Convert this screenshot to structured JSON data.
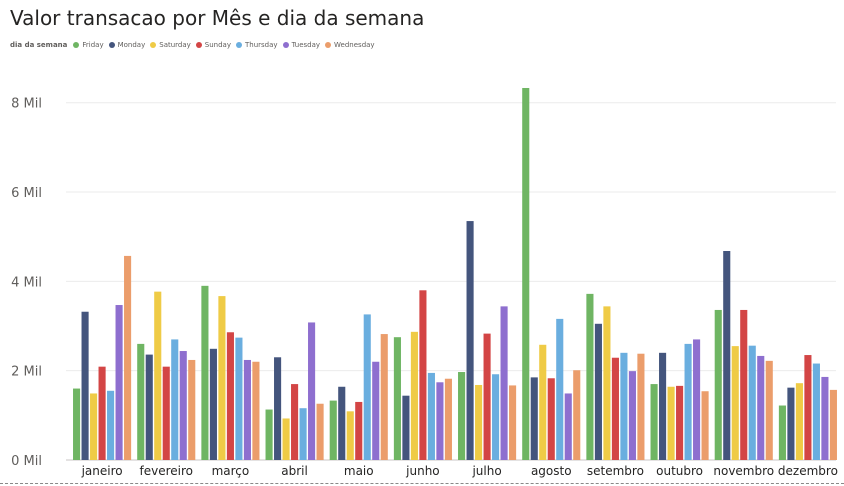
{
  "chart_data": {
    "type": "bar",
    "title": "Valor transacao por Mês e dia da semana",
    "legend_title": "dia da semana",
    "legend_position": "top-left",
    "grid": true,
    "ylim": [
      0,
      8800
    ],
    "yticks": [
      {
        "value": 0,
        "label": "0 Mil"
      },
      {
        "value": 2000,
        "label": "2 Mil"
      },
      {
        "value": 4000,
        "label": "4 Mil"
      },
      {
        "value": 6000,
        "label": "6 Mil"
      },
      {
        "value": 8000,
        "label": "8 Mil"
      }
    ],
    "categories": [
      "janeiro",
      "fevereiro",
      "março",
      "abril",
      "maio",
      "junho",
      "julho",
      "agosto",
      "setembro",
      "outubro",
      "novembro",
      "dezembro"
    ],
    "series": [
      {
        "name": "Friday",
        "color": "#6fb563",
        "values": [
          1600,
          2600,
          3900,
          1130,
          1330,
          2750,
          1970,
          8330,
          3720,
          1700,
          3360,
          1220
        ]
      },
      {
        "name": "Monday",
        "color": "#44557d",
        "values": [
          3320,
          2360,
          2490,
          2300,
          1640,
          1440,
          5350,
          1850,
          3050,
          2400,
          4680,
          1620
        ]
      },
      {
        "name": "Saturday",
        "color": "#efcb46",
        "values": [
          1490,
          3770,
          3670,
          930,
          1090,
          2870,
          1680,
          2580,
          3440,
          1640,
          2550,
          1720
        ]
      },
      {
        "name": "Sunday",
        "color": "#d34545",
        "values": [
          2090,
          2090,
          2860,
          1700,
          1300,
          3800,
          2830,
          1830,
          2290,
          1660,
          3360,
          2350
        ]
      },
      {
        "name": "Thursday",
        "color": "#6aaedf",
        "values": [
          1550,
          2700,
          2740,
          1160,
          3260,
          1950,
          1920,
          3160,
          2400,
          2600,
          2560,
          2160
        ]
      },
      {
        "name": "Tuesday",
        "color": "#8e6fcf",
        "values": [
          3470,
          2440,
          2240,
          3080,
          2200,
          1740,
          3440,
          1490,
          1990,
          2700,
          2330,
          1860
        ]
      },
      {
        "name": "Wednesday",
        "color": "#eb9d6b",
        "values": [
          4570,
          2240,
          2200,
          1260,
          2820,
          1820,
          1670,
          2010,
          2380,
          1540,
          2220,
          1570
        ]
      }
    ]
  }
}
